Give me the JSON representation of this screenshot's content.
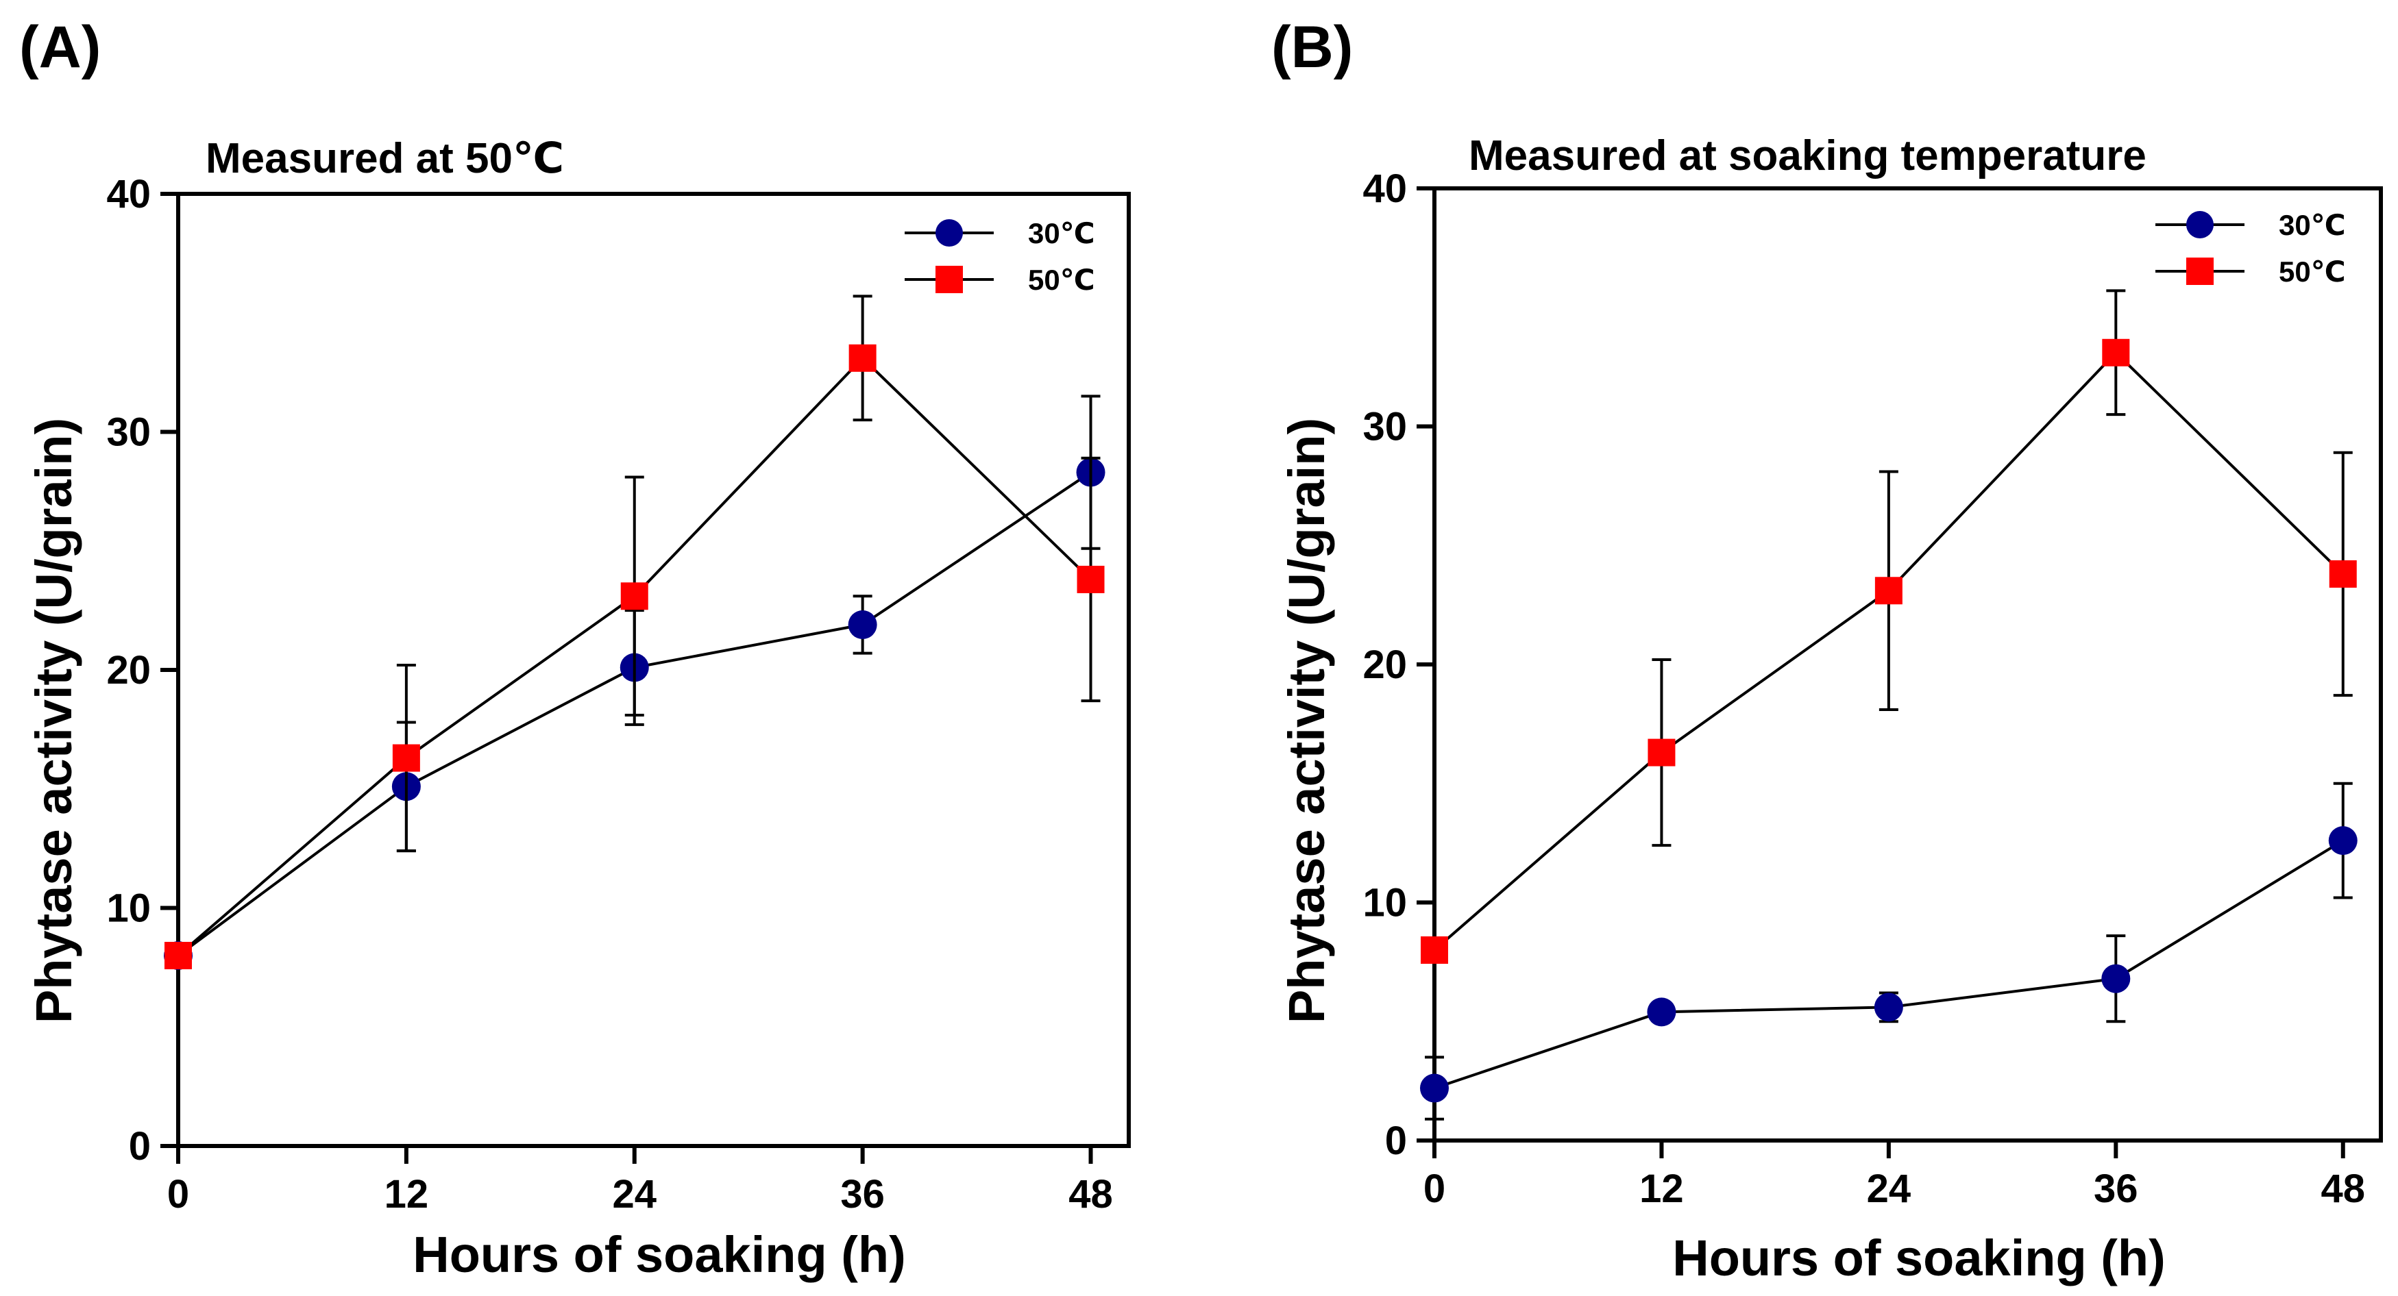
{
  "figure": {
    "panels": [
      "(A)",
      "(B)"
    ]
  },
  "chart_data": [
    {
      "type": "line",
      "panel_label": "(A)",
      "title": "Measured at 50℃",
      "xlabel": "Hours of soaking (h)",
      "ylabel": "Phytase activity (U/grain)",
      "x": [
        0,
        12,
        24,
        36,
        48
      ],
      "xlim": [
        0,
        50
      ],
      "ylim": [
        0,
        40
      ],
      "xticks": [
        0,
        12,
        24,
        36,
        48
      ],
      "yticks": [
        0,
        10,
        20,
        30,
        40
      ],
      "grid": false,
      "legend_position": "top-right",
      "series": [
        {
          "name": "30℃",
          "marker": "circle",
          "color": "#00008B",
          "values": [
            8.0,
            15.1,
            20.1,
            21.9,
            28.3
          ],
          "errors": [
            0.5,
            2.7,
            2.4,
            1.2,
            3.2
          ]
        },
        {
          "name": "50℃",
          "marker": "square",
          "color": "#FF0000",
          "values": [
            8.0,
            16.3,
            23.1,
            33.1,
            23.8
          ],
          "errors": [
            0.5,
            3.9,
            5.0,
            2.6,
            5.1
          ]
        }
      ]
    },
    {
      "type": "line",
      "panel_label": "(B)",
      "title": "Measured at soaking temperature",
      "xlabel": "Hours of soaking (h)",
      "ylabel": "Phytase activity (U/grain)",
      "x": [
        0,
        12,
        24,
        36,
        48
      ],
      "xlim": [
        0,
        50
      ],
      "ylim": [
        0,
        40
      ],
      "xticks": [
        0,
        12,
        24,
        36,
        48
      ],
      "yticks": [
        0,
        10,
        20,
        30,
        40
      ],
      "grid": false,
      "legend_position": "top-right",
      "series": [
        {
          "name": "30℃",
          "marker": "circle",
          "color": "#00008B",
          "values": [
            2.2,
            5.4,
            5.6,
            6.8,
            12.6
          ],
          "errors": [
            1.3,
            0.3,
            0.6,
            1.8,
            2.4
          ]
        },
        {
          "name": "50℃",
          "marker": "square",
          "color": "#FF0000",
          "values": [
            8.0,
            16.3,
            23.1,
            33.1,
            23.8
          ],
          "errors": [
            0.5,
            3.9,
            5.0,
            2.6,
            5.1
          ]
        }
      ]
    }
  ]
}
